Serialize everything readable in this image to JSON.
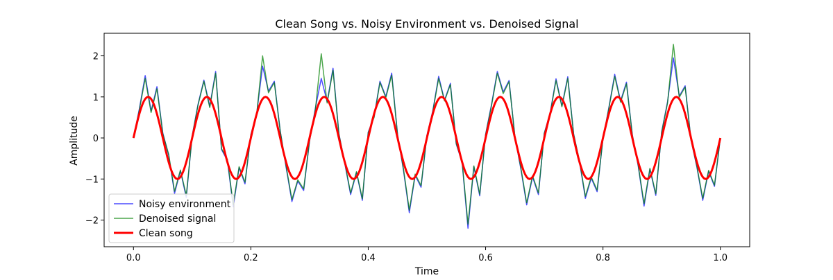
{
  "chart_data": {
    "type": "line",
    "title": "Clean Song vs. Noisy Environment vs. Denoised Signal",
    "xlabel": "Time",
    "ylabel": "Amplitude",
    "xlim": [
      -0.05,
      1.05
    ],
    "ylim": [
      -2.65,
      2.55
    ],
    "xticks": [
      0.0,
      0.2,
      0.4,
      0.6,
      0.8,
      1.0
    ],
    "xtick_labels": [
      "0.0",
      "0.2",
      "0.4",
      "0.6",
      "0.8",
      "1.0"
    ],
    "yticks": [
      -2,
      -1,
      0,
      1,
      2
    ],
    "ytick_labels": [
      "−2",
      "−1",
      "0",
      "1",
      "2"
    ],
    "grid": false,
    "legend_position": "lower-left",
    "series": [
      {
        "name": "Noisy environment",
        "color": "#0000ff",
        "opacity": 0.7,
        "linewidth": 1.5,
        "description_values": "clean sine plus random noise, std approx 0.5",
        "x": [
          0.0,
          0.01,
          0.02,
          0.03,
          0.04,
          0.05,
          0.06,
          0.07,
          0.08,
          0.09,
          0.1,
          0.11,
          0.12,
          0.13,
          0.14,
          0.15,
          0.16,
          0.17,
          0.18,
          0.19,
          0.2,
          0.21,
          0.22,
          0.23,
          0.24,
          0.25,
          0.26,
          0.27,
          0.28,
          0.29,
          0.3,
          0.31,
          0.32,
          0.33,
          0.34,
          0.35,
          0.36,
          0.37,
          0.38,
          0.39,
          0.4,
          0.41,
          0.42,
          0.43,
          0.44,
          0.45,
          0.46,
          0.47,
          0.48,
          0.49,
          0.5,
          0.51,
          0.52,
          0.53,
          0.54,
          0.55,
          0.56,
          0.57,
          0.58,
          0.59,
          0.6,
          0.61,
          0.62,
          0.63,
          0.64,
          0.65,
          0.66,
          0.67,
          0.68,
          0.69,
          0.7,
          0.71,
          0.72,
          0.73,
          0.74,
          0.75,
          0.76,
          0.77,
          0.78,
          0.79,
          0.8,
          0.81,
          0.82,
          0.83,
          0.84,
          0.85,
          0.86,
          0.87,
          0.88,
          0.89,
          0.9,
          0.91,
          0.92,
          0.93,
          0.94,
          0.95,
          0.96,
          0.97,
          0.98,
          0.99,
          1.0
        ],
        "y": [
          0.0,
          0.71,
          1.52,
          0.65,
          1.25,
          0.12,
          -0.42,
          -1.35,
          -0.8,
          -1.45,
          0.05,
          0.82,
          1.41,
          0.77,
          1.62,
          -0.28,
          -0.55,
          -1.68,
          -0.72,
          -1.12,
          0.08,
          0.6,
          1.75,
          1.14,
          1.38,
          0.18,
          -0.71,
          -1.55,
          -1.05,
          -1.28,
          -0.08,
          0.73,
          1.45,
          0.88,
          1.7,
          0.11,
          -0.62,
          -1.38,
          -0.84,
          -1.52,
          0.14,
          0.52,
          1.38,
          1.01,
          1.58,
          0.08,
          -0.78,
          -1.82,
          -0.91,
          -1.2,
          0.06,
          0.66,
          1.5,
          0.92,
          1.33,
          -0.15,
          -0.6,
          -2.2,
          -0.7,
          -1.41,
          0.09,
          0.81,
          1.62,
          1.12,
          1.4,
          0.02,
          -0.75,
          -1.63,
          -0.95,
          -1.38,
          0.12,
          0.61,
          1.44,
          0.78,
          1.49,
          0.1,
          -0.58,
          -1.47,
          -0.98,
          -1.31,
          -0.02,
          0.74,
          1.55,
          0.9,
          1.36,
          0.08,
          -0.68,
          -1.66,
          -0.76,
          -1.4,
          0.15,
          0.88,
          1.95,
          1.02,
          1.27,
          -0.05,
          -0.71,
          -1.52,
          -0.81,
          -1.18,
          0.0
        ]
      },
      {
        "name": "Denoised signal",
        "color": "#008000",
        "opacity": 0.7,
        "linewidth": 1.5,
        "x": [
          0.0,
          0.01,
          0.02,
          0.03,
          0.04,
          0.05,
          0.06,
          0.07,
          0.08,
          0.09,
          0.1,
          0.11,
          0.12,
          0.13,
          0.14,
          0.15,
          0.16,
          0.17,
          0.18,
          0.19,
          0.2,
          0.21,
          0.22,
          0.23,
          0.24,
          0.25,
          0.26,
          0.27,
          0.28,
          0.29,
          0.3,
          0.31,
          0.32,
          0.33,
          0.34,
          0.35,
          0.36,
          0.37,
          0.38,
          0.39,
          0.4,
          0.41,
          0.42,
          0.43,
          0.44,
          0.45,
          0.46,
          0.47,
          0.48,
          0.49,
          0.5,
          0.51,
          0.52,
          0.53,
          0.54,
          0.55,
          0.56,
          0.57,
          0.58,
          0.59,
          0.6,
          0.61,
          0.62,
          0.63,
          0.64,
          0.65,
          0.66,
          0.67,
          0.68,
          0.69,
          0.7,
          0.71,
          0.72,
          0.73,
          0.74,
          0.75,
          0.76,
          0.77,
          0.78,
          0.79,
          0.8,
          0.81,
          0.82,
          0.83,
          0.84,
          0.85,
          0.86,
          0.87,
          0.88,
          0.89,
          0.9,
          0.91,
          0.92,
          0.93,
          0.94,
          0.95,
          0.96,
          0.97,
          0.98,
          0.99,
          1.0
        ],
        "y": [
          0.0,
          0.68,
          1.45,
          0.62,
          1.2,
          0.1,
          -0.4,
          -1.3,
          -0.78,
          -1.4,
          0.04,
          0.8,
          1.38,
          0.74,
          1.58,
          -0.26,
          -0.52,
          -1.62,
          -0.7,
          -1.08,
          0.07,
          0.58,
          2.0,
          1.1,
          1.35,
          0.17,
          -0.68,
          -1.5,
          -1.02,
          -1.24,
          -0.07,
          0.7,
          2.05,
          0.85,
          1.65,
          0.1,
          -0.6,
          -1.34,
          -0.82,
          -1.48,
          0.13,
          0.5,
          1.35,
          0.98,
          1.53,
          0.07,
          -0.75,
          -1.76,
          -0.88,
          -1.16,
          0.05,
          0.64,
          1.45,
          0.9,
          1.3,
          -0.14,
          -0.58,
          -2.1,
          -0.68,
          -1.37,
          0.08,
          0.78,
          1.58,
          1.08,
          1.37,
          0.02,
          -0.72,
          -1.58,
          -0.92,
          -1.34,
          0.11,
          0.59,
          1.4,
          0.76,
          1.45,
          0.09,
          -0.56,
          -1.42,
          -0.95,
          -1.27,
          -0.02,
          0.72,
          1.5,
          0.87,
          1.32,
          0.07,
          -0.66,
          -1.6,
          -0.74,
          -1.36,
          0.14,
          0.85,
          2.28,
          0.99,
          1.24,
          -0.05,
          -0.69,
          -1.47,
          -0.79,
          -1.15,
          0.0
        ]
      },
      {
        "name": "Clean song",
        "color": "#ff0000",
        "opacity": 1.0,
        "linewidth": 3,
        "function": "sin(2*pi*10*t)",
        "x_range": [
          0.0,
          1.0
        ],
        "frequency": 10,
        "amplitude": 1
      }
    ]
  }
}
